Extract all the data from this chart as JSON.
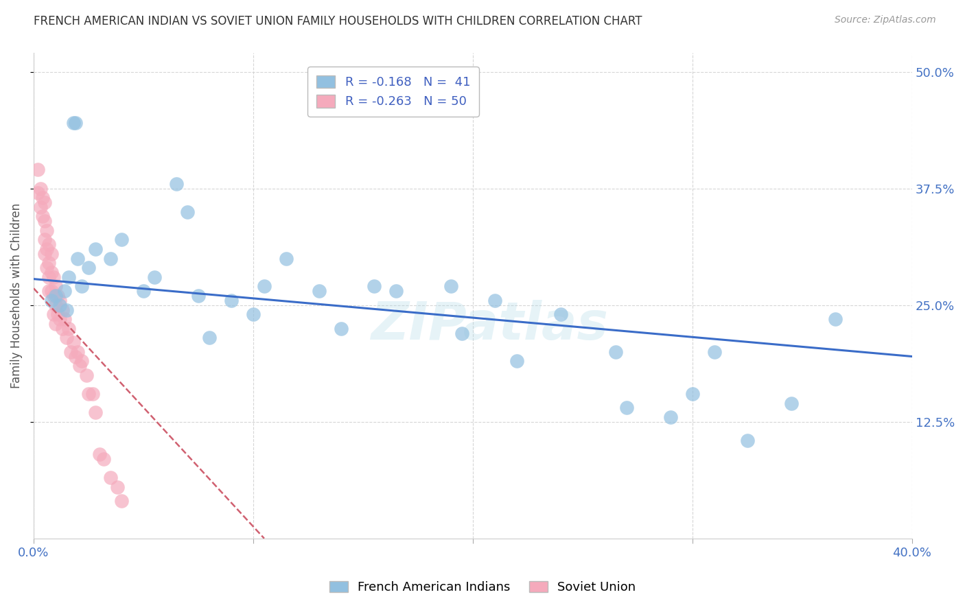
{
  "title": "FRENCH AMERICAN INDIAN VS SOVIET UNION FAMILY HOUSEHOLDS WITH CHILDREN CORRELATION CHART",
  "source": "Source: ZipAtlas.com",
  "ylabel": "Family Households with Children",
  "ytick_labels": [
    "12.5%",
    "25.0%",
    "37.5%",
    "50.0%"
  ],
  "ytick_values": [
    0.125,
    0.25,
    0.375,
    0.5
  ],
  "xlim": [
    0.0,
    0.4
  ],
  "ylim": [
    0.0,
    0.52
  ],
  "legend_entry1_r": "-0.168",
  "legend_entry1_n": "41",
  "legend_entry2_r": "-0.263",
  "legend_entry2_n": "50",
  "blue_color": "#92C0E0",
  "pink_color": "#F5AABC",
  "blue_line_color": "#3A6CC8",
  "pink_line_color": "#D06070",
  "watermark": "ZIPatlas",
  "blue_x": [
    0.008,
    0.01,
    0.012,
    0.014,
    0.015,
    0.016,
    0.018,
    0.019,
    0.02,
    0.022,
    0.025,
    0.028,
    0.035,
    0.04,
    0.05,
    0.055,
    0.065,
    0.07,
    0.075,
    0.08,
    0.09,
    0.1,
    0.105,
    0.115,
    0.13,
    0.14,
    0.155,
    0.165,
    0.19,
    0.195,
    0.21,
    0.22,
    0.24,
    0.265,
    0.27,
    0.29,
    0.3,
    0.31,
    0.325,
    0.345,
    0.365
  ],
  "blue_y": [
    0.255,
    0.26,
    0.25,
    0.265,
    0.245,
    0.28,
    0.445,
    0.445,
    0.3,
    0.27,
    0.29,
    0.31,
    0.3,
    0.32,
    0.265,
    0.28,
    0.38,
    0.35,
    0.26,
    0.215,
    0.255,
    0.24,
    0.27,
    0.3,
    0.265,
    0.225,
    0.27,
    0.265,
    0.27,
    0.22,
    0.255,
    0.19,
    0.24,
    0.2,
    0.14,
    0.13,
    0.155,
    0.2,
    0.105,
    0.145,
    0.235
  ],
  "pink_x": [
    0.002,
    0.002,
    0.003,
    0.003,
    0.004,
    0.004,
    0.005,
    0.005,
    0.005,
    0.005,
    0.006,
    0.006,
    0.006,
    0.007,
    0.007,
    0.007,
    0.007,
    0.008,
    0.008,
    0.008,
    0.009,
    0.009,
    0.009,
    0.01,
    0.01,
    0.01,
    0.011,
    0.011,
    0.012,
    0.012,
    0.013,
    0.013,
    0.014,
    0.015,
    0.016,
    0.017,
    0.018,
    0.019,
    0.02,
    0.021,
    0.022,
    0.024,
    0.025,
    0.027,
    0.028,
    0.03,
    0.032,
    0.035,
    0.038,
    0.04
  ],
  "pink_y": [
    0.395,
    0.37,
    0.375,
    0.355,
    0.365,
    0.345,
    0.36,
    0.34,
    0.32,
    0.305,
    0.33,
    0.31,
    0.29,
    0.315,
    0.295,
    0.28,
    0.265,
    0.305,
    0.285,
    0.265,
    0.28,
    0.26,
    0.24,
    0.27,
    0.25,
    0.23,
    0.26,
    0.24,
    0.255,
    0.235,
    0.245,
    0.225,
    0.235,
    0.215,
    0.225,
    0.2,
    0.21,
    0.195,
    0.2,
    0.185,
    0.19,
    0.175,
    0.155,
    0.155,
    0.135,
    0.09,
    0.085,
    0.065,
    0.055,
    0.04
  ],
  "blue_trendline_x": [
    0.0,
    0.4
  ],
  "blue_trendline_y": [
    0.278,
    0.195
  ],
  "pink_trendline_x": [
    0.0,
    0.105
  ],
  "pink_trendline_y": [
    0.268,
    0.0
  ]
}
